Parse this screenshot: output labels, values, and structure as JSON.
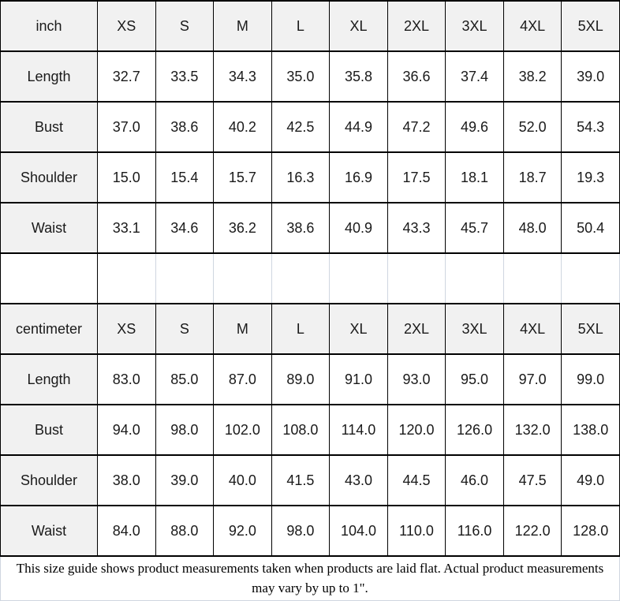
{
  "colors": {
    "header_background": "#f1f1f1",
    "grid_border_dark": "#000000",
    "grid_border_light": "#cfd6e0",
    "text": "#1a1a1a",
    "cell_background": "#ffffff"
  },
  "tables": [
    {
      "unit_label": "inch",
      "sizes": [
        "XS",
        "S",
        "M",
        "L",
        "XL",
        "2XL",
        "3XL",
        "4XL",
        "5XL"
      ],
      "rows": [
        {
          "label": "Length",
          "values": [
            "32.7",
            "33.5",
            "34.3",
            "35.0",
            "35.8",
            "36.6",
            "37.4",
            "38.2",
            "39.0"
          ]
        },
        {
          "label": "Bust",
          "values": [
            "37.0",
            "38.6",
            "40.2",
            "42.5",
            "44.9",
            "47.2",
            "49.6",
            "52.0",
            "54.3"
          ]
        },
        {
          "label": "Shoulder",
          "values": [
            "15.0",
            "15.4",
            "15.7",
            "16.3",
            "16.9",
            "17.5",
            "18.1",
            "18.7",
            "19.3"
          ]
        },
        {
          "label": "Waist",
          "values": [
            "33.1",
            "34.6",
            "36.2",
            "38.6",
            "40.9",
            "43.3",
            "45.7",
            "48.0",
            "50.4"
          ]
        }
      ]
    },
    {
      "unit_label": "centimeter",
      "sizes": [
        "XS",
        "S",
        "M",
        "L",
        "XL",
        "2XL",
        "3XL",
        "4XL",
        "5XL"
      ],
      "rows": [
        {
          "label": "Length",
          "values": [
            "83.0",
            "85.0",
            "87.0",
            "89.0",
            "91.0",
            "93.0",
            "95.0",
            "97.0",
            "99.0"
          ]
        },
        {
          "label": "Bust",
          "values": [
            "94.0",
            "98.0",
            "102.0",
            "108.0",
            "114.0",
            "120.0",
            "126.0",
            "132.0",
            "138.0"
          ]
        },
        {
          "label": "Shoulder",
          "values": [
            "38.0",
            "39.0",
            "40.0",
            "41.5",
            "43.0",
            "44.5",
            "46.0",
            "47.5",
            "49.0"
          ]
        },
        {
          "label": "Waist",
          "values": [
            "84.0",
            "88.0",
            "92.0",
            "98.0",
            "104.0",
            "110.0",
            "116.0",
            "122.0",
            "128.0"
          ]
        }
      ]
    }
  ],
  "footer": {
    "note": "This size guide shows product measurements taken when products are laid flat. Actual product measurements may vary by up to 1\"."
  }
}
